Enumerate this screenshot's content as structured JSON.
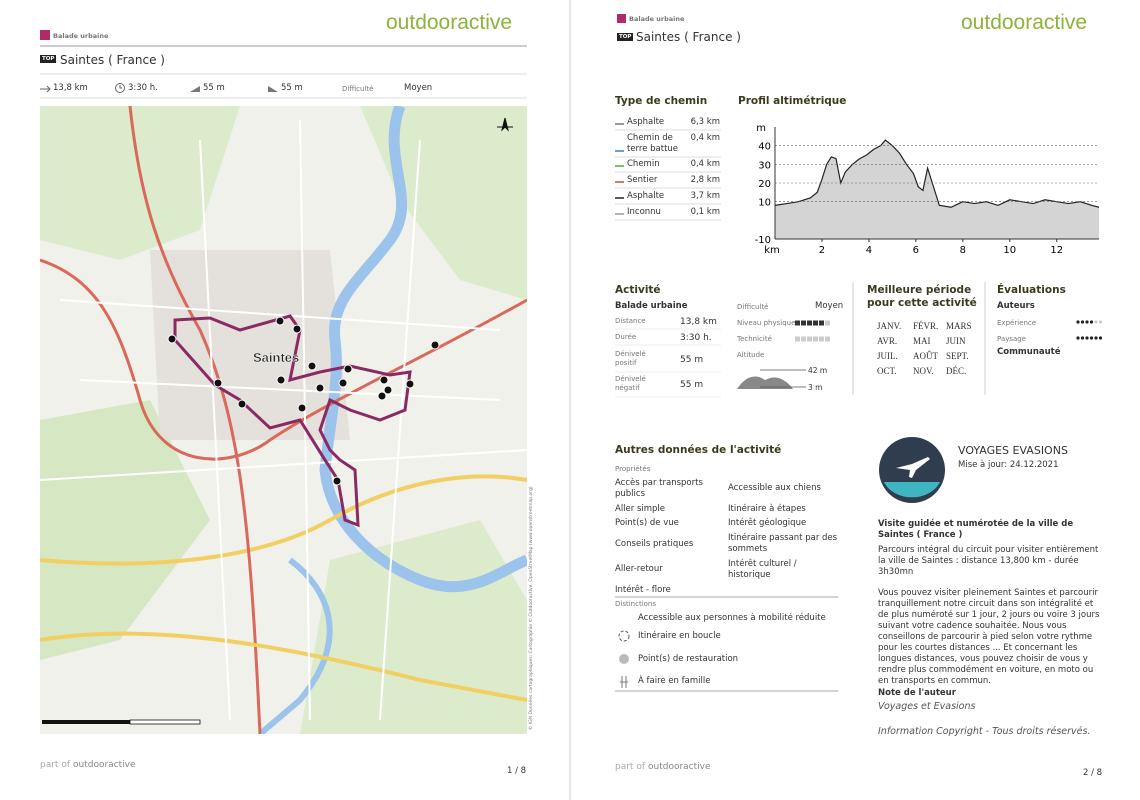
{
  "header": {
    "brand": "outdooractive",
    "category": "Balade urbaine",
    "badge": "TOP",
    "title": "Saintes ( France )"
  },
  "stats": {
    "distance": "13,8 km",
    "duration": "3:30 h.",
    "ascent": "55 m",
    "descent": "55 m",
    "difficulty_label": "Difficulté",
    "difficulty": "Moyen"
  },
  "map": {
    "label": "Saintes",
    "credit": "© IGN Données cartographiques: Cartographie © Outdooractive, OpenStreetMap (www.openstreetmap.org)"
  },
  "footer": {
    "prefix": "part of",
    "brand": "outdooractive",
    "pages": [
      "1 / 8",
      "2 / 8"
    ]
  },
  "path_types": {
    "title": "Type de chemin",
    "rows": [
      {
        "name": "Asphalte",
        "length": "6,3 km",
        "color": "#777777"
      },
      {
        "name": "Chemin de terre battue",
        "length": "0,4 km",
        "color": "#3c7fc4"
      },
      {
        "name": "Chemin",
        "length": "0,4 km",
        "color": "#5aa83c"
      },
      {
        "name": "Sentier",
        "length": "2,8 km",
        "color": "#d9443c"
      },
      {
        "name": "Asphalte",
        "length": "3,7 km",
        "color": "#222222"
      },
      {
        "name": "Inconnu",
        "length": "0,1 km",
        "color": "#999999"
      }
    ]
  },
  "profile": {
    "type": "line",
    "title": "Profil altimétrique",
    "y_unit": "m",
    "x_unit": "km",
    "x": [
      0,
      0.5,
      1,
      1.5,
      1.8,
      2.0,
      2.2,
      2.4,
      2.6,
      2.8,
      3.0,
      3.3,
      3.6,
      3.9,
      4.2,
      4.5,
      4.7,
      5.0,
      5.3,
      5.6,
      5.9,
      6.1,
      6.3,
      6.5,
      6.7,
      7.0,
      7.5,
      8.0,
      8.5,
      9.0,
      9.5,
      10.0,
      10.5,
      11.0,
      11.5,
      12.0,
      12.5,
      13.0,
      13.5,
      13.8
    ],
    "values": [
      8,
      9,
      10,
      12,
      15,
      22,
      30,
      34,
      33,
      20,
      26,
      30,
      33,
      35,
      38,
      40,
      43,
      40,
      36,
      30,
      25,
      18,
      16,
      28,
      20,
      8,
      7,
      10,
      9,
      10,
      8,
      11,
      10,
      9,
      11,
      10,
      9,
      10,
      8,
      7
    ],
    "color": "#222222",
    "fill": "#d4d4d4",
    "xlim": [
      0,
      13.8
    ],
    "ylim": [
      -10,
      50
    ],
    "xticks": [
      2,
      4,
      6,
      8,
      10,
      12
    ],
    "yticks": [
      -10,
      10,
      20,
      30,
      40
    ],
    "grid": true
  },
  "activity": {
    "title": "Activité",
    "subtitle": "Balade urbaine",
    "rows": [
      {
        "label": "Distance",
        "value": "13,8 km"
      },
      {
        "label": "Durée",
        "value": "3:30 h."
      },
      {
        "label": "Dénivelé positif",
        "value": "55 m"
      },
      {
        "label": "Dénivelé négatif",
        "value": "55 m"
      }
    ],
    "difficulty_label": "Difficulté",
    "difficulty": "Moyen",
    "levels": [
      {
        "label": "Niveau physique",
        "value": 5,
        "max": 6
      },
      {
        "label": "Technicité",
        "value": 0,
        "max": 6
      }
    ],
    "altitude_label": "Altitude",
    "altitude_max": "42 m",
    "altitude_min": "3 m"
  },
  "season": {
    "title": "Meilleure période pour cette activité",
    "months": [
      "JANV.",
      "FÉVR.",
      "MARS",
      "AVR.",
      "MAI",
      "JUIN",
      "JUIL.",
      "AOÛT",
      "SEPT.",
      "OCT.",
      "NOV.",
      "DÉC."
    ]
  },
  "ratings": {
    "title": "Évaluations",
    "authors": "Auteurs",
    "items": [
      {
        "label": "Expérience",
        "value": 4,
        "max": 6
      },
      {
        "label": "Paysage",
        "value": 6,
        "max": 6
      }
    ],
    "community": "Communauté"
  },
  "other": {
    "title": "Autres données de l'activité",
    "properties_label": "Propriétés",
    "properties_left": [
      "Accès par transports publics",
      "Aller simple",
      "Point(s) de vue",
      "Conseils pratiques",
      "Aller-retour",
      "Intérêt - flore"
    ],
    "properties_right": [
      "Accessible aux chiens",
      "Itinéraire à étapes",
      "Intérêt géologique",
      "Itinéraire passant par des sommets",
      "Intérêt culturel / historique"
    ],
    "distinctions_label": "Distinctions",
    "distinctions": [
      "Accessible aux personnes à mobilité réduite",
      "Itinéraire en boucle",
      "Point(s) de restauration",
      "À faire en famille"
    ]
  },
  "author": {
    "name": "VOYAGES EVASIONS",
    "updated": "Mise à jour: 24.12.2021",
    "heading": "Visite guidée et numérotée de la ville de Saintes ( France )",
    "paragraphs": [
      "Parcours intégral du circuit pour visiter entièrement la ville de Saintes : distance 13,800 km - durée 3h30mn",
      "Vous pouvez visiter pleinement Saintes et parcourir tranquillement notre circuit dans son intégralité et de plus numéroté sur 1 jour, 2 jours ou voire 3 jours suivant votre cadence souhaitée. Nous vous conseillons de parcourir à pied selon votre rythme pour les courtes distances ... Et concernant les longues distances, vous pouvez choisir de vous y rendre plus commodément en voiture, en moto ou en transports en commun."
    ],
    "note_label": "Note de l'auteur",
    "note": "Voyages et Evasions",
    "copyright": "Information Copyright - Tous droits réservés."
  }
}
